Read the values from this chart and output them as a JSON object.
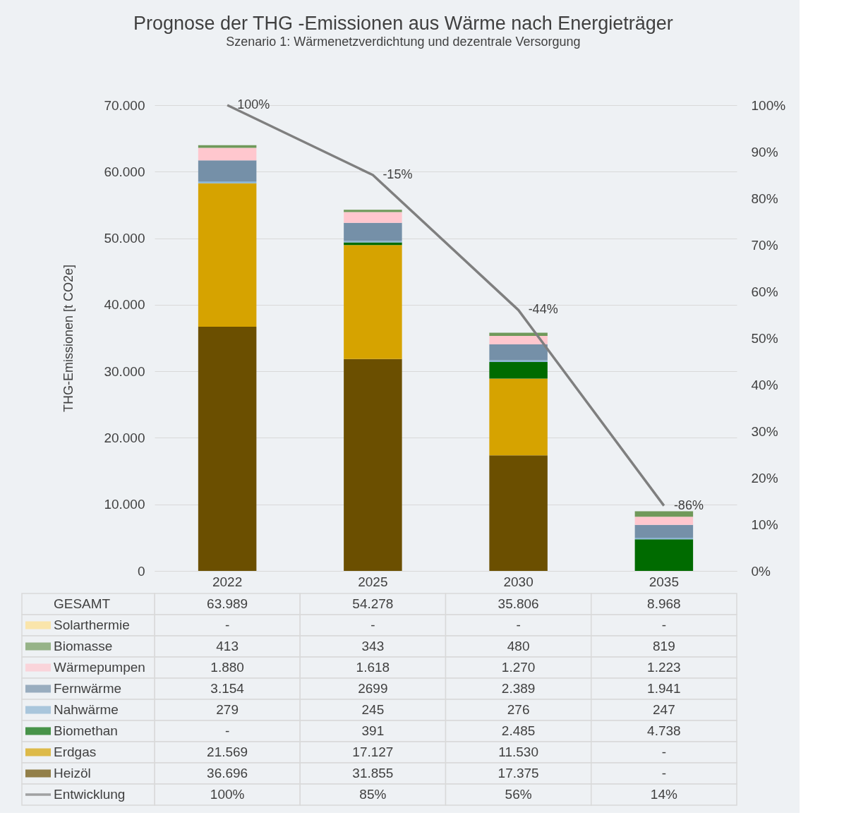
{
  "chart_data": {
    "type": "bar",
    "title": "Prognose der THG -Emissionen aus Wärme nach Energieträger",
    "subtitle": "Szenario 1: Wärmenetzverdichtung und dezentrale Versorgung",
    "ylabel": "THG-Emissionen [t CO2e]",
    "categories": [
      "2022",
      "2025",
      "2030",
      "2035"
    ],
    "stacked": true,
    "legend": "bottom",
    "grid": "y",
    "data_labels": true,
    "ylim": [
      0,
      70000
    ],
    "yticks": [
      0,
      {
        "value": 10000,
        "label": "10.000"
      },
      {
        "value": 20000,
        "label": "20.000"
      },
      {
        "value": 30000,
        "label": "30.000"
      },
      {
        "value": 40000,
        "label": "40.000"
      },
      {
        "value": 50000,
        "label": "50.000"
      },
      {
        "value": 60000,
        "label": "60.000"
      },
      {
        "value": 70000,
        "label": "70.000"
      }
    ],
    "y2lim": [
      0,
      100
    ],
    "y2ticks": [
      {
        "value": 0,
        "label": "0%"
      },
      {
        "value": 10,
        "label": "10%"
      },
      {
        "value": 20,
        "label": "20%"
      },
      {
        "value": 30,
        "label": "30%"
      },
      {
        "value": 40,
        "label": "40%"
      },
      {
        "value": 50,
        "label": "50%"
      },
      {
        "value": 60,
        "label": "60%"
      },
      {
        "value": 70,
        "label": "70%"
      },
      {
        "value": 80,
        "label": "80%"
      },
      {
        "value": 90,
        "label": "90%"
      },
      {
        "value": 100,
        "label": "100%"
      }
    ],
    "totals": [
      "63.989",
      "54.278",
      "35.806",
      "8.968"
    ],
    "series": [
      {
        "name": "Heizöl",
        "color": "#6b4f00",
        "values": [
          36696,
          31855,
          17375,
          null
        ],
        "value_labels": [
          "36.696",
          "31.855",
          "17.375",
          "-"
        ]
      },
      {
        "name": "Erdgas",
        "color": "#d6a300",
        "values": [
          21569,
          17127,
          11530,
          null
        ],
        "value_labels": [
          "21.569",
          "17.127",
          "11.530",
          "-"
        ]
      },
      {
        "name": "Biomethan",
        "color": "#006b00",
        "values": [
          null,
          391,
          2485,
          4738
        ],
        "value_labels": [
          "-",
          "391",
          "2.485",
          "4.738"
        ]
      },
      {
        "name": "Nahwärme",
        "color": "#8cb4d2",
        "values": [
          279,
          245,
          276,
          247
        ],
        "value_labels": [
          "279",
          "245",
          "276",
          "247"
        ]
      },
      {
        "name": "Fernwärme",
        "color": "#7590a8",
        "values": [
          3154,
          2699,
          2389,
          1941
        ],
        "value_labels": [
          "3.154",
          "2699",
          "2.389",
          "1.941"
        ]
      },
      {
        "name": "Wärmepumpen",
        "color": "#ffc7ce",
        "values": [
          1880,
          1618,
          1270,
          1223
        ],
        "value_labels": [
          "1.880",
          "1.618",
          "1.270",
          "1.223"
        ]
      },
      {
        "name": "Biomasse",
        "color": "#70995a",
        "values": [
          413,
          343,
          480,
          819
        ],
        "value_labels": [
          "413",
          "343",
          "480",
          "819"
        ]
      },
      {
        "name": "Solarthermie",
        "color": "#ffe08c",
        "values": [
          null,
          null,
          null,
          null
        ],
        "value_labels": [
          "-",
          "-",
          "-",
          "-"
        ]
      },
      {
        "name": "Entwicklung",
        "type": "line",
        "axis": "y2",
        "color": "#7f7f7f",
        "values": [
          100,
          85,
          56,
          14
        ],
        "value_labels": [
          "100%",
          "85%",
          "56%",
          "14%"
        ]
      }
    ],
    "annotations": [
      "GESAMT",
      "100%",
      "-15%",
      "-44%",
      "-86%"
    ]
  }
}
